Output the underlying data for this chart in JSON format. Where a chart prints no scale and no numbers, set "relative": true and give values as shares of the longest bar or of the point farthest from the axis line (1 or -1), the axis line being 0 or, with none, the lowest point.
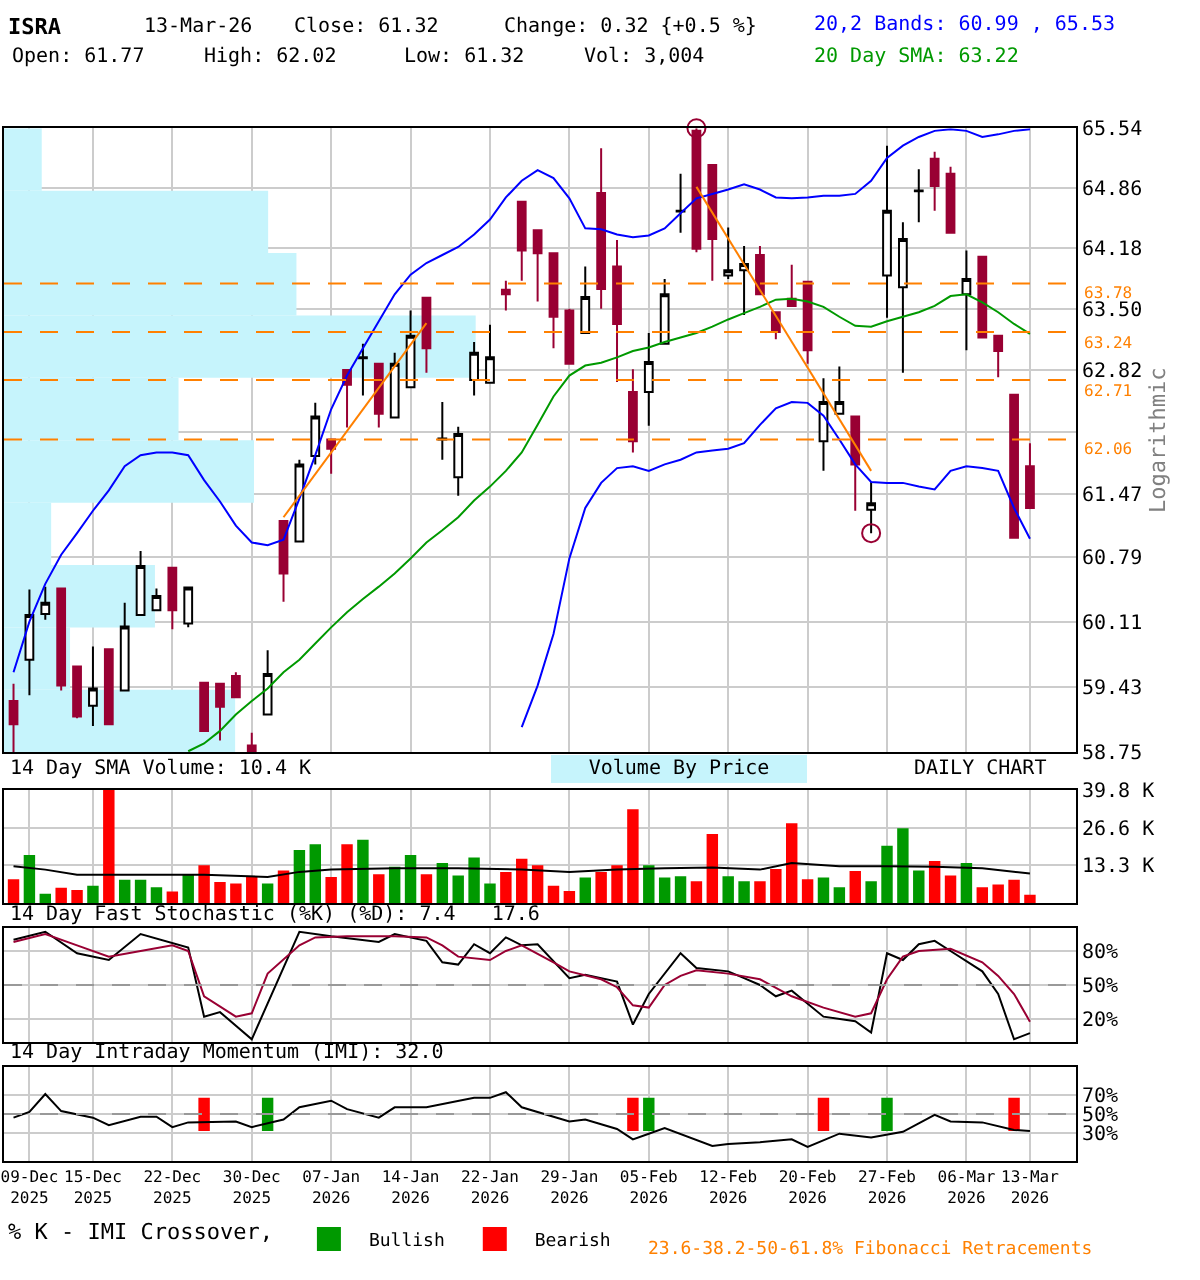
{
  "chart_data": [
    {
      "type": "candlestick",
      "title": "ISRA",
      "colors": [
        "#990033",
        "#ffffff",
        "#ffffff",
        "#990033",
        "#990033",
        "#ffffff",
        "#990033",
        "#ffffff",
        "#ffffff",
        "#ffffff",
        "#990033",
        "#ffffff",
        "#990033",
        "#990033",
        "#990033",
        "#990033",
        "#ffffff",
        "#990033",
        "#ffffff",
        "#ffffff",
        "#990033",
        "#990033",
        "#000000",
        "#990033",
        "#ffffff",
        "#ffffff",
        "#990033",
        "#000000",
        "#ffffff",
        "#ffffff",
        "#ffffff",
        "#990033",
        "#990033",
        "#990033",
        "#990033",
        "#990033",
        "#ffffff",
        "#990033",
        "#990033",
        "#990033",
        "#ffffff",
        "#ffffff",
        "#000000",
        "#990033",
        "#990033",
        "#ffffff",
        "#ffffff",
        "#990033",
        "#990033",
        "#990033",
        "#990033",
        "#ffffff",
        "#ffffff",
        "#990033",
        "#ffffff",
        "#ffffff",
        "#ffffff",
        "#000000",
        "#990033",
        "#990033",
        "#ffffff",
        "#990033",
        "#990033",
        "#990033",
        "#990033"
      ],
      "log": true,
      "ylabel": "Logarithmic",
      "grid": true,
      "tick_labels": "y",
      "annotations": [
        "13-Mar-26",
        "Close: 61.32",
        "Change: 0.32 {+0.5 %}",
        "Open: 61.77",
        "High: 62.02",
        "Low: 61.32",
        "Vol: 3,004",
        "23.6-38.2-50-61.8% Fibonacci Retracements"
      ],
      "categories": [
        null,
        null,
        null,
        null,
        null,
        null,
        null,
        null,
        null,
        null,
        null,
        null,
        null,
        null,
        null,
        null,
        null,
        null,
        null,
        null,
        null,
        null,
        null,
        null,
        null,
        null,
        null,
        null,
        null,
        null,
        null,
        null,
        null,
        null,
        null,
        null,
        null,
        null,
        null,
        null,
        null,
        null,
        null,
        null,
        null,
        null,
        null,
        null,
        null,
        null,
        null,
        null,
        null,
        null,
        null,
        null,
        null,
        null,
        null,
        null,
        null,
        null,
        null,
        null,
        null
      ],
      "ylim": [
        58.75,
        65.54
      ],
      "yticks": [
        58.75,
        59.43,
        60.11,
        60.79,
        61.47,
        {
          "value": 62.14,
          "label": null
        },
        62.82,
        {
          "value": 63.5,
          "label": "63.50"
        },
        64.18,
        64.86,
        65.54
      ],
      "ohlc": [
        [
          59.28,
          59.46,
          58.75,
          59.04
        ],
        [
          59.71,
          60.45,
          59.34,
          60.18
        ],
        [
          60.19,
          60.48,
          60.13,
          60.31
        ],
        [
          60.46,
          60.46,
          59.39,
          59.44
        ],
        [
          59.64,
          59.64,
          59.1,
          59.12
        ],
        [
          59.23,
          59.85,
          59.02,
          59.41
        ],
        [
          59.82,
          59.82,
          59.04,
          59.04
        ],
        [
          59.39,
          60.31,
          59.39,
          60.06
        ],
        [
          60.18,
          60.86,
          60.18,
          60.7
        ],
        [
          60.23,
          60.46,
          60.23,
          60.38
        ],
        [
          60.68,
          60.68,
          60.03,
          60.23
        ],
        [
          60.09,
          60.47,
          60.05,
          60.47
        ],
        [
          59.47,
          59.47,
          58.97,
          58.97
        ],
        [
          59.46,
          59.46,
          58.87,
          59.22
        ],
        [
          59.54,
          59.58,
          59.32,
          59.32
        ],
        [
          58.82,
          58.95,
          58.75,
          58.76
        ],
        [
          59.14,
          59.81,
          59.14,
          59.56
        ],
        [
          61.18,
          61.18,
          60.32,
          60.62
        ],
        [
          60.96,
          61.84,
          60.96,
          61.79
        ],
        [
          61.88,
          62.46,
          61.79,
          62.31
        ],
        [
          62.06,
          62.06,
          61.69,
          61.96
        ],
        [
          62.82,
          62.82,
          62.19,
          62.66
        ],
        [
          62.95,
          63.11,
          62.54,
          62.96
        ],
        [
          62.89,
          62.89,
          62.19,
          62.34
        ],
        [
          62.3,
          63.01,
          62.3,
          62.89
        ],
        [
          62.63,
          63.48,
          62.63,
          63.2
        ],
        [
          63.62,
          63.62,
          62.79,
          63.06
        ],
        [
          62.06,
          62.47,
          61.84,
          62.07
        ],
        [
          61.65,
          62.2,
          61.45,
          62.12
        ],
        [
          62.71,
          63.13,
          62.54,
          63.01
        ],
        [
          62.68,
          63.32,
          62.68,
          62.96
        ],
        [
          63.71,
          63.81,
          63.48,
          63.66
        ],
        [
          64.7,
          64.7,
          63.81,
          64.15
        ],
        [
          64.38,
          64.38,
          63.58,
          64.12
        ],
        [
          64.12,
          64.12,
          63.06,
          63.41
        ],
        [
          63.48,
          63.5,
          62.89,
          62.89
        ],
        [
          63.23,
          63.97,
          63.23,
          63.63
        ],
        [
          64.8,
          65.31,
          63.5,
          63.72
        ],
        [
          63.97,
          64.27,
          62.69,
          63.33
        ],
        [
          62.58,
          62.83,
          61.92,
          62.04
        ],
        [
          62.58,
          63.23,
          62.21,
          62.91
        ],
        [
          63.11,
          63.83,
          63.11,
          63.66
        ],
        [
          64.59,
          65.02,
          64.35,
          64.6
        ],
        [
          65.51,
          65.54,
          64.13,
          64.17
        ],
        [
          65.12,
          65.12,
          63.81,
          64.28
        ],
        [
          63.87,
          64.41,
          63.83,
          63.93
        ],
        [
          63.93,
          64.2,
          63.43,
          64.0
        ],
        [
          64.1,
          64.2,
          63.66,
          63.66
        ],
        [
          63.46,
          63.46,
          63.16,
          63.24
        ],
        [
          63.61,
          63.99,
          63.53,
          63.53
        ],
        [
          63.8,
          63.8,
          62.89,
          63.04
        ],
        [
          62.04,
          62.73,
          61.72,
          62.47
        ],
        [
          62.34,
          62.86,
          62.34,
          62.47
        ],
        [
          62.31,
          62.31,
          61.29,
          61.79
        ],
        [
          61.3,
          61.6,
          61.05,
          61.37
        ],
        [
          63.87,
          65.34,
          63.4,
          64.6
        ],
        [
          63.74,
          64.47,
          62.79,
          64.28
        ],
        [
          64.82,
          65.07,
          64.47,
          64.83
        ],
        [
          65.19,
          65.27,
          64.6,
          64.88
        ],
        [
          65.02,
          65.1,
          64.35,
          64.35
        ],
        [
          63.66,
          64.15,
          63.04,
          63.83
        ],
        [
          64.08,
          64.08,
          63.18,
          63.18
        ],
        [
          63.2,
          63.2,
          62.74,
          63.03
        ],
        [
          62.55,
          62.55,
          61.0,
          61.0
        ],
        [
          61.77,
          62.02,
          61.32,
          61.32
        ]
      ],
      "ref_lines": [
        {
          "axis": "y",
          "value": 63.78,
          "label": "63.78",
          "color": "#ff8000",
          "line_style": "dashed"
        },
        {
          "axis": "y",
          "value": 63.24,
          "label": "63.24",
          "color": "#ff8000",
          "line_style": "dashed"
        },
        {
          "axis": "y",
          "value": 62.71,
          "label": "62.71",
          "color": "#ff8000",
          "line_style": "dashed"
        },
        {
          "axis": "y",
          "value": 62.06,
          "label": "62.06",
          "color": "#ff8000",
          "line_style": "dashed"
        }
      ],
      "series": [
        {
          "name": "20 Day SMA: 63.22",
          "type": "line",
          "color": "#009900",
          "values": [
            null,
            null,
            null,
            null,
            null,
            null,
            null,
            null,
            null,
            null,
            null,
            58.76,
            58.84,
            58.97,
            59.14,
            59.28,
            59.41,
            59.58,
            59.71,
            59.88,
            60.05,
            60.21,
            60.35,
            60.48,
            60.62,
            60.78,
            60.95,
            61.08,
            61.22,
            61.4,
            61.55,
            61.72,
            61.92,
            62.22,
            62.53,
            62.76,
            62.87,
            62.9,
            62.96,
            63.03,
            63.07,
            63.13,
            63.18,
            63.23,
            63.3,
            63.38,
            63.45,
            63.52,
            63.6,
            63.61,
            63.58,
            63.52,
            63.41,
            63.31,
            63.3,
            63.36,
            63.41,
            63.46,
            63.53,
            63.64,
            63.66,
            63.57,
            63.46,
            63.33,
            63.22
          ]
        },
        {
          "name": "20,2 Bands: 60.99 , 65.53",
          "type": "line",
          "color": "#0000ff",
          "values": [
            59.58,
            60.11,
            60.51,
            60.82,
            61.05,
            61.29,
            61.51,
            61.77,
            61.89,
            61.92,
            61.92,
            61.89,
            61.62,
            61.39,
            61.13,
            60.95,
            60.92,
            60.98,
            61.42,
            61.89,
            62.39,
            62.76,
            63.06,
            63.36,
            63.66,
            63.88,
            64.01,
            64.1,
            64.19,
            64.33,
            64.5,
            64.75,
            64.94,
            65.06,
            64.97,
            64.74,
            64.4,
            64.39,
            64.33,
            64.3,
            64.32,
            64.4,
            64.57,
            64.74,
            64.79,
            64.84,
            64.9,
            64.84,
            64.75,
            64.74,
            64.75,
            64.77,
            64.77,
            64.79,
            64.94,
            65.2,
            65.34,
            65.44,
            65.51,
            65.53,
            65.51,
            65.44,
            65.47,
            65.51,
            65.53
          ]
        },
        {
          "type": "line",
          "color": "#0000ff",
          "values": [
            null,
            null,
            null,
            null,
            null,
            null,
            null,
            null,
            null,
            null,
            null,
            null,
            null,
            null,
            null,
            null,
            null,
            null,
            null,
            null,
            null,
            null,
            null,
            null,
            null,
            null,
            null,
            null,
            null,
            null,
            null,
            null,
            59.01,
            59.44,
            59.98,
            60.78,
            61.32,
            61.59,
            61.75,
            61.77,
            61.72,
            61.79,
            61.84,
            61.92,
            61.94,
            61.96,
            62.02,
            62.22,
            62.4,
            62.47,
            62.46,
            62.32,
            62.06,
            61.79,
            61.6,
            61.59,
            61.59,
            61.55,
            61.52,
            61.72,
            61.77,
            61.75,
            61.72,
            61.32,
            60.99
          ]
        },
        {
          "type": "line",
          "color": "#ff8000",
          "values": [
            null,
            null,
            null,
            null,
            null,
            null,
            null,
            null,
            null,
            null,
            null,
            null,
            null,
            null,
            null,
            null,
            null,
            61.22,
            null,
            null,
            null,
            null,
            null,
            null,
            null,
            null,
            63.34,
            null,
            null,
            null,
            null,
            null,
            null,
            null,
            null,
            null,
            null,
            null,
            null,
            null,
            null,
            null,
            null,
            null,
            null,
            null,
            null,
            null,
            null,
            null,
            null,
            null,
            null,
            null,
            null,
            null,
            null,
            null,
            null,
            null,
            null,
            null,
            null,
            null,
            null
          ]
        },
        {
          "type": "line",
          "color": "#ff8000",
          "values": [
            null,
            null,
            null,
            null,
            null,
            null,
            null,
            null,
            null,
            null,
            null,
            null,
            null,
            null,
            null,
            null,
            null,
            null,
            null,
            null,
            null,
            null,
            null,
            null,
            null,
            null,
            null,
            null,
            null,
            null,
            null,
            null,
            null,
            null,
            null,
            null,
            null,
            null,
            null,
            null,
            null,
            null,
            null,
            64.87,
            null,
            null,
            null,
            null,
            null,
            null,
            null,
            null,
            null,
            null,
            61.72,
            null,
            null,
            null,
            null,
            null,
            null,
            null,
            null,
            null,
            null
          ]
        },
        {
          "type": "scatter",
          "marker": "circle",
          "color": "#990033",
          "values": [
            null,
            null,
            null,
            null,
            null,
            null,
            null,
            null,
            null,
            null,
            null,
            null,
            null,
            null,
            null,
            null,
            null,
            null,
            null,
            null,
            null,
            null,
            null,
            null,
            null,
            null,
            null,
            null,
            null,
            null,
            null,
            null,
            null,
            null,
            null,
            null,
            null,
            null,
            null,
            null,
            null,
            null,
            null,
            65.54,
            null,
            null,
            null,
            null,
            null,
            null,
            null,
            null,
            null,
            null,
            61.05,
            null,
            null,
            null,
            null,
            null,
            null,
            null,
            null,
            null,
            null
          ]
        }
      ]
    },
    {
      "type": "bar",
      "orientation": "horizontal",
      "relative": true,
      "categories": [
        null,
        null,
        null,
        null,
        null,
        null,
        null,
        null,
        null,
        null
      ],
      "series": [
        {
          "name": "Volume By Price",
          "color": "#c6f4fc",
          "values": [
            0.08,
            0.56,
            0.62,
            1,
            0.37,
            0.53,
            0.1,
            0.32,
            0.14,
            0.49
          ]
        }
      ]
    },
    {
      "type": "bar",
      "title": "14 Day SMA Volume: 10.4 K",
      "annotations": [
        "DAILY CHART"
      ],
      "grid": true,
      "tick_labels": "y",
      "categories": [
        null,
        null,
        null,
        null,
        null,
        null,
        null,
        null,
        null,
        null,
        null,
        null,
        null,
        null,
        null,
        null,
        null,
        null,
        null,
        null,
        null,
        null,
        null,
        null,
        null,
        null,
        null,
        null,
        null,
        null,
        null,
        null,
        null,
        null,
        null,
        null,
        null,
        null,
        null,
        null,
        null,
        null,
        null,
        null,
        null,
        null,
        null,
        null,
        null,
        null,
        null,
        null,
        null,
        null,
        null,
        null,
        null,
        null,
        null,
        null,
        null,
        null,
        null,
        null,
        null
      ],
      "ylim": [
        0,
        39.8
      ],
      "yticks": [
        {
          "value": 13.3,
          "label": "13.3 K"
        },
        {
          "value": 26.6,
          "label": "26.6 K"
        },
        {
          "value": 39.8,
          "label": "39.8 K"
        }
      ],
      "series": [
        {
          "type": "bar",
          "values": [
            8.4,
            16.9,
            3.3,
            5.4,
            4.6,
            6.1,
            39.8,
            8.2,
            8.2,
            5.6,
            4.1,
            10.0,
            13.3,
            7.4,
            6.9,
            9.2,
            6.9,
            11.5,
            18.7,
            20.7,
            9.2,
            20.7,
            22.3,
            10.2,
            12.8,
            16.9,
            10.2,
            14.1,
            9.7,
            16.1,
            6.9,
            11.0,
            15.6,
            13.3,
            6.1,
            4.3,
            9.0,
            11.0,
            13.3,
            33.0,
            13.3,
            9.0,
            9.5,
            7.7,
            24.3,
            9.5,
            7.7,
            7.7,
            12.0,
            28.1,
            8.4,
            9.0,
            5.6,
            11.3,
            7.7,
            20.2,
            26.3,
            11.5,
            14.8,
            9.7,
            14.1,
            5.6,
            6.6,
            8.2,
            3.0
          ],
          "colors": [
            "#ff0000",
            "#009900",
            "#009900",
            "#ff0000",
            "#ff0000",
            "#009900",
            "#ff0000",
            "#009900",
            "#009900",
            "#009900",
            "#ff0000",
            "#009900",
            "#ff0000",
            "#ff0000",
            "#ff0000",
            "#ff0000",
            "#009900",
            "#ff0000",
            "#009900",
            "#009900",
            "#ff0000",
            "#ff0000",
            "#009900",
            "#ff0000",
            "#009900",
            "#009900",
            "#ff0000",
            "#009900",
            "#009900",
            "#009900",
            "#009900",
            "#ff0000",
            "#ff0000",
            "#ff0000",
            "#ff0000",
            "#ff0000",
            "#009900",
            "#ff0000",
            "#ff0000",
            "#ff0000",
            "#009900",
            "#009900",
            "#009900",
            "#ff0000",
            "#ff0000",
            "#009900",
            "#009900",
            "#ff0000",
            "#ff0000",
            "#ff0000",
            "#ff0000",
            "#009900",
            "#009900",
            "#ff0000",
            "#009900",
            "#009900",
            "#009900",
            "#009900",
            "#ff0000",
            "#ff0000",
            "#009900",
            "#ff0000",
            "#ff0000",
            "#ff0000",
            "#ff0000"
          ]
        },
        {
          "type": "line",
          "color": "#000000",
          "values": [
            13.0,
            null,
            11.8,
            null,
            10.0,
            null,
            null,
            null,
            10.0,
            null,
            null,
            null,
            10.0,
            null,
            null,
            null,
            9.2,
            null,
            11.0,
            null,
            11.8,
            null,
            null,
            null,
            12.3,
            null,
            null,
            null,
            12.3,
            null,
            null,
            null,
            11.8,
            null,
            null,
            11.0,
            null,
            null,
            11.8,
            null,
            null,
            12.3,
            null,
            null,
            12.5,
            null,
            null,
            11.8,
            null,
            14.1,
            null,
            null,
            13.0,
            null,
            null,
            13.0,
            null,
            null,
            12.8,
            null,
            null,
            12.3,
            null,
            null,
            10.4
          ]
        }
      ]
    },
    {
      "type": "line",
      "title": "14 Day Fast Stochastic (%K) (%D): 7.4   17.6",
      "grid": true,
      "tick_labels": "y",
      "categories": [
        null,
        null,
        null,
        null,
        null,
        null,
        null,
        null,
        null,
        null,
        null,
        null,
        null,
        null,
        null,
        null,
        null,
        null,
        null,
        null,
        null,
        null,
        null,
        null,
        null,
        null,
        null,
        null,
        null,
        null,
        null,
        null,
        null,
        null,
        null,
        null,
        null,
        null,
        null,
        null,
        null,
        null,
        null,
        null,
        null,
        null,
        null,
        null,
        null,
        null,
        null,
        null,
        null,
        null,
        null,
        null,
        null,
        null,
        null,
        null,
        null,
        null,
        null,
        null,
        null
      ],
      "ylim": [
        0,
        100
      ],
      "yticks": [
        {
          "value": 20,
          "label": "20%"
        },
        {
          "value": 50,
          "label": "50%"
        },
        {
          "value": 80,
          "label": "80%"
        }
      ],
      "ref_lines": [
        {
          "axis": "y",
          "value": 50,
          "color": "#999999",
          "line_style": "dashed"
        }
      ],
      "series": [
        {
          "type": "line",
          "color": "#000000",
          "values": [
            90,
            null,
            97,
            null,
            78,
            null,
            72,
            null,
            95,
            null,
            null,
            83,
            22,
            26,
            null,
            2,
            null,
            null,
            97,
            null,
            93,
            null,
            null,
            88,
            95,
            null,
            89,
            70,
            68,
            86,
            78,
            92,
            85,
            86,
            null,
            56,
            59,
            null,
            53,
            15,
            42,
            null,
            78,
            65,
            null,
            62,
            56,
            50,
            40,
            45,
            null,
            22,
            null,
            18,
            8,
            78,
            72,
            86,
            89,
            80,
            null,
            62,
            42,
            2,
            7.4
          ]
        },
        {
          "type": "line",
          "color": "#990033",
          "values": [
            88,
            null,
            95,
            null,
            85,
            null,
            75,
            null,
            80,
            null,
            85,
            80,
            40,
            null,
            22,
            25,
            60,
            null,
            85,
            92,
            null,
            93,
            null,
            null,
            93,
            null,
            92,
            85,
            75,
            null,
            72,
            80,
            85,
            null,
            70,
            62,
            null,
            55,
            48,
            32,
            30,
            50,
            58,
            63,
            null,
            60,
            null,
            55,
            null,
            40,
            null,
            30,
            null,
            22,
            25,
            55,
            75,
            80,
            null,
            82,
            null,
            70,
            58,
            42,
            17.6
          ]
        }
      ]
    },
    {
      "type": "line",
      "title": "14 Day Intraday Momentum (IMI): 32.0",
      "grid": true,
      "legend": "bottom",
      "legend_title": "% K - IMI Crossover,",
      "categories": [
        null,
        "09-Dec\n2025",
        null,
        null,
        null,
        "15-Dec\n2025",
        null,
        null,
        null,
        null,
        "22-Dec\n2025",
        null,
        null,
        null,
        null,
        "30-Dec\n2025",
        null,
        null,
        null,
        null,
        "07-Jan\n2026",
        null,
        null,
        null,
        null,
        "14-Jan\n2026",
        null,
        null,
        null,
        null,
        "22-Jan\n2026",
        null,
        null,
        null,
        null,
        "29-Jan\n2026",
        null,
        null,
        null,
        null,
        "05-Feb\n2026",
        null,
        null,
        null,
        null,
        "12-Feb\n2026",
        null,
        null,
        null,
        null,
        "20-Feb\n2026",
        null,
        null,
        null,
        null,
        "27-Feb\n2026",
        null,
        null,
        null,
        null,
        "06-Mar\n2026",
        null,
        null,
        null,
        "13-Mar\n2026"
      ],
      "ylim": [
        0,
        100
      ],
      "yticks": [
        {
          "value": 30,
          "label": "30%"
        },
        {
          "value": 50,
          "label": "50%"
        },
        {
          "value": 70,
          "label": "70%"
        }
      ],
      "ref_lines": [
        {
          "axis": "y",
          "value": 50,
          "color": "#999999",
          "line_style": "dashed"
        }
      ],
      "series": [
        {
          "name": "Bullish",
          "type": "bar",
          "color": "#009900",
          "values": [
            null,
            null,
            null,
            null,
            null,
            null,
            null,
            null,
            null,
            null,
            null,
            null,
            null,
            null,
            null,
            null,
            35,
            null,
            null,
            null,
            null,
            null,
            null,
            null,
            null,
            null,
            null,
            null,
            null,
            null,
            null,
            null,
            null,
            null,
            null,
            null,
            null,
            null,
            null,
            null,
            35,
            null,
            null,
            null,
            null,
            null,
            null,
            null,
            null,
            null,
            null,
            null,
            null,
            null,
            null,
            35,
            null,
            null,
            null,
            null,
            null,
            null,
            null,
            null,
            null
          ],
          "base": [
            null,
            null,
            null,
            null,
            null,
            null,
            null,
            null,
            null,
            null,
            null,
            null,
            null,
            null,
            null,
            null,
            32,
            null,
            null,
            null,
            null,
            null,
            null,
            null,
            null,
            null,
            null,
            null,
            null,
            null,
            null,
            null,
            null,
            null,
            null,
            null,
            null,
            null,
            null,
            null,
            32,
            null,
            null,
            null,
            null,
            null,
            null,
            null,
            null,
            null,
            null,
            null,
            null,
            null,
            null,
            32,
            null,
            null,
            null,
            null,
            null,
            null,
            null,
            null,
            null
          ]
        },
        {
          "name": "Bearish",
          "type": "bar",
          "color": "#ff0000",
          "values": [
            null,
            null,
            null,
            null,
            null,
            null,
            null,
            null,
            null,
            null,
            null,
            null,
            35,
            null,
            null,
            null,
            null,
            null,
            null,
            null,
            null,
            null,
            null,
            null,
            null,
            null,
            null,
            null,
            null,
            null,
            null,
            null,
            null,
            null,
            null,
            null,
            null,
            null,
            null,
            35,
            null,
            null,
            null,
            null,
            null,
            null,
            null,
            null,
            null,
            null,
            null,
            35,
            null,
            null,
            null,
            null,
            null,
            null,
            null,
            null,
            null,
            null,
            null,
            35,
            null
          ],
          "base": [
            null,
            null,
            null,
            null,
            null,
            null,
            null,
            null,
            null,
            null,
            null,
            null,
            32,
            null,
            null,
            null,
            null,
            null,
            null,
            null,
            null,
            null,
            null,
            null,
            null,
            null,
            null,
            null,
            null,
            null,
            null,
            null,
            null,
            null,
            null,
            null,
            null,
            null,
            null,
            32,
            null,
            null,
            null,
            null,
            null,
            null,
            null,
            null,
            null,
            null,
            null,
            32,
            null,
            null,
            null,
            null,
            null,
            null,
            null,
            null,
            null,
            null,
            null,
            32,
            null
          ]
        },
        {
          "type": "line",
          "color": "#000000",
          "values": [
            46,
            52,
            71,
            53,
            null,
            46,
            38,
            null,
            47,
            47,
            36,
            41,
            null,
            null,
            42,
            36,
            null,
            44,
            57,
            null,
            64,
            55,
            null,
            46,
            57,
            null,
            57,
            null,
            null,
            67,
            67,
            73,
            57,
            null,
            47,
            42,
            44,
            null,
            34,
            23,
            29,
            35,
            null,
            null,
            16,
            18,
            null,
            20,
            null,
            23,
            15,
            null,
            29,
            null,
            25,
            null,
            31,
            null,
            49,
            42,
            null,
            41,
            null,
            33,
            32.0
          ]
        }
      ]
    }
  ]
}
